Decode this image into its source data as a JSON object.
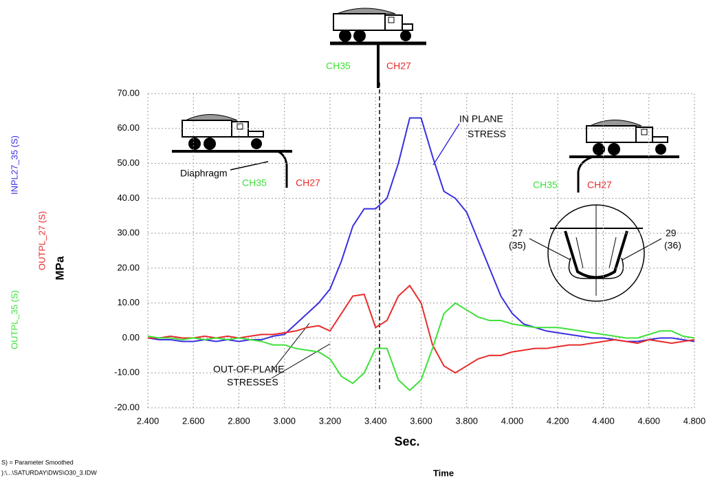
{
  "chart_data": {
    "type": "line",
    "x_label": "Sec.",
    "y_label": "MPa",
    "bottom_label": "Time",
    "footnotes": [
      "S) = Parameter Smoothed",
      "):\\...\\SATURDAY\\DWS\\O30_3.IDW"
    ],
    "xlim": [
      2.4,
      4.8
    ],
    "ylim": [
      -20,
      70
    ],
    "xticks": [
      {
        "value": 2.4,
        "label": "2.400"
      },
      {
        "value": 2.6,
        "label": "2.600"
      },
      {
        "value": 2.8,
        "label": "2.800"
      },
      {
        "value": 3.0,
        "label": "3.000"
      },
      {
        "value": 3.2,
        "label": "3.200"
      },
      {
        "value": 3.4,
        "label": "3.400"
      },
      {
        "value": 3.6,
        "label": "3.600"
      },
      {
        "value": 3.8,
        "label": "3.800"
      },
      {
        "value": 4.0,
        "label": "4.000"
      },
      {
        "value": 4.2,
        "label": "4.200"
      },
      {
        "value": 4.4,
        "label": "4.400"
      },
      {
        "value": 4.6,
        "label": "4.600"
      },
      {
        "value": 4.8,
        "label": "4.800"
      }
    ],
    "yticks": [
      {
        "value": -20,
        "label": "-20.00"
      },
      {
        "value": -10,
        "label": "-10.00"
      },
      {
        "value": 0,
        "label": "0.00"
      },
      {
        "value": 10,
        "label": "10.00"
      },
      {
        "value": 20,
        "label": "20.00"
      },
      {
        "value": 30,
        "label": "30.00"
      },
      {
        "value": 40,
        "label": "40.00"
      },
      {
        "value": 50,
        "label": "50.00"
      },
      {
        "value": 60,
        "label": "60.00"
      },
      {
        "value": 70,
        "label": "70.00"
      }
    ],
    "grid": true,
    "x": [
      2.4,
      2.45,
      2.5,
      2.55,
      2.6,
      2.65,
      2.7,
      2.75,
      2.8,
      2.85,
      2.9,
      2.95,
      3.0,
      3.05,
      3.1,
      3.15,
      3.2,
      3.25,
      3.3,
      3.35,
      3.4,
      3.45,
      3.5,
      3.55,
      3.6,
      3.65,
      3.7,
      3.75,
      3.8,
      3.85,
      3.9,
      3.95,
      4.0,
      4.05,
      4.1,
      4.15,
      4.2,
      4.25,
      4.3,
      4.35,
      4.4,
      4.45,
      4.5,
      4.55,
      4.6,
      4.65,
      4.7,
      4.75,
      4.8
    ],
    "series": [
      {
        "name": "INPL27_35 (S)",
        "color": "#3a2ee0",
        "values": [
          0,
          -0.5,
          -0.5,
          -1,
          -1,
          -0.5,
          -1,
          -0.5,
          -1,
          -0.5,
          -0.5,
          0.5,
          1,
          4,
          7,
          10,
          14,
          22,
          32,
          37,
          37,
          40,
          50,
          63,
          63,
          52,
          42,
          40,
          36,
          28,
          20,
          12,
          7,
          4,
          3,
          2,
          1.5,
          1,
          0.5,
          0,
          0,
          -0.5,
          -1,
          -1,
          -0.5,
          0,
          0,
          -0.5,
          -1
        ]
      },
      {
        "name": "OUTPL_27 (S)",
        "color": "#e82a2a",
        "values": [
          0,
          0,
          0.5,
          0,
          0,
          0.5,
          0,
          0.5,
          0,
          0.5,
          1,
          1,
          1.5,
          2,
          3,
          3.5,
          2,
          7,
          12,
          12.5,
          3,
          5,
          12,
          15,
          10,
          -2,
          -8,
          -10,
          -8,
          -6,
          -5,
          -5,
          -4,
          -3.5,
          -3,
          -3,
          -2.5,
          -2,
          -2,
          -1.5,
          -1,
          -0.5,
          -1,
          -1.5,
          -0.5,
          -1,
          -1.5,
          -1,
          -0.5
        ]
      },
      {
        "name": "OUTPL_35 (S)",
        "color": "#3ee03a",
        "values": [
          0.5,
          0,
          0,
          -0.5,
          0,
          -0.5,
          0,
          -0.5,
          0,
          -0.5,
          -1,
          -2,
          -2,
          -3,
          -3.5,
          -4,
          -6,
          -11,
          -13,
          -10,
          -3,
          -3,
          -12,
          -15,
          -12,
          -3,
          7,
          10,
          8,
          6,
          5,
          5,
          4,
          3.5,
          3,
          3,
          3,
          2.5,
          2,
          1.5,
          1,
          0.5,
          0,
          0,
          1,
          2,
          2,
          0.5,
          0
        ]
      }
    ],
    "annotations": {
      "in_plane": [
        "IN PLANE",
        "STRESS"
      ],
      "out_of_plane": [
        "OUT-OF-PLANE",
        "STRESSES"
      ],
      "diaphragm": "Diaphragm",
      "ch35": "CH35",
      "ch27": "CH27",
      "gauge_left": [
        "27",
        "(35)"
      ],
      "gauge_right": [
        "29",
        "(36)"
      ]
    }
  }
}
